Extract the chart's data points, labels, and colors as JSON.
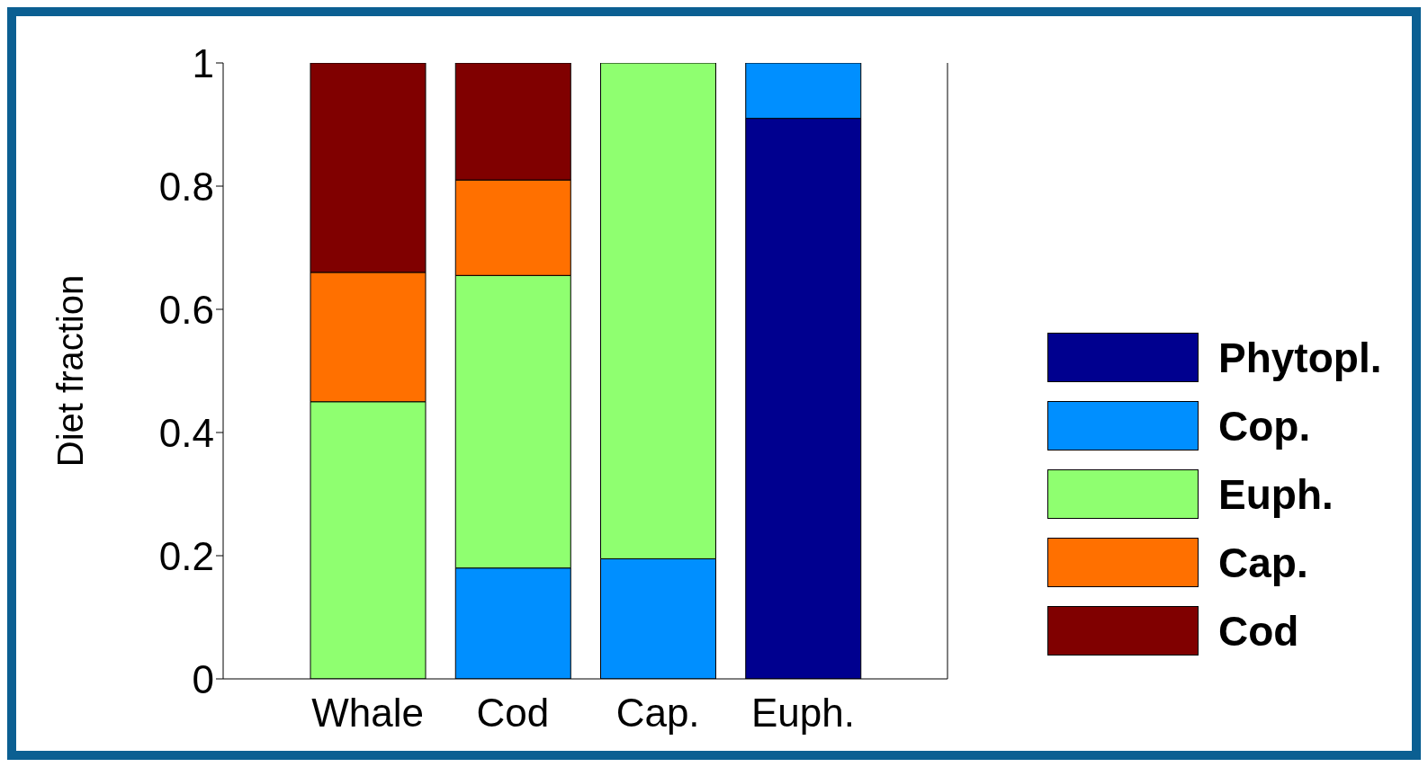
{
  "chart_data": {
    "type": "bar",
    "stacked": true,
    "ylabel": "Diet fraction",
    "categories": [
      "Whale",
      "Cod",
      "Cap.",
      "Euph."
    ],
    "series": [
      {
        "name": "Phytopl.",
        "color": "#00008f",
        "values": [
          0,
          0,
          0,
          0.91
        ]
      },
      {
        "name": "Cop.",
        "color": "#008fff",
        "values": [
          0,
          0.18,
          0.195,
          0.09
        ]
      },
      {
        "name": "Euph.",
        "color": "#8fff70",
        "values": [
          0.45,
          0.475,
          0.805,
          0
        ]
      },
      {
        "name": "Cap.",
        "color": "#ff7000",
        "values": [
          0.21,
          0.155,
          0,
          0
        ]
      },
      {
        "name": "Cod",
        "color": "#800000",
        "values": [
          0.34,
          0.19,
          0,
          0
        ]
      }
    ],
    "ylim": [
      0,
      1
    ],
    "yticks": [
      0,
      0.2,
      0.4,
      0.6,
      0.8,
      1
    ],
    "grid": false,
    "legend": "right"
  }
}
